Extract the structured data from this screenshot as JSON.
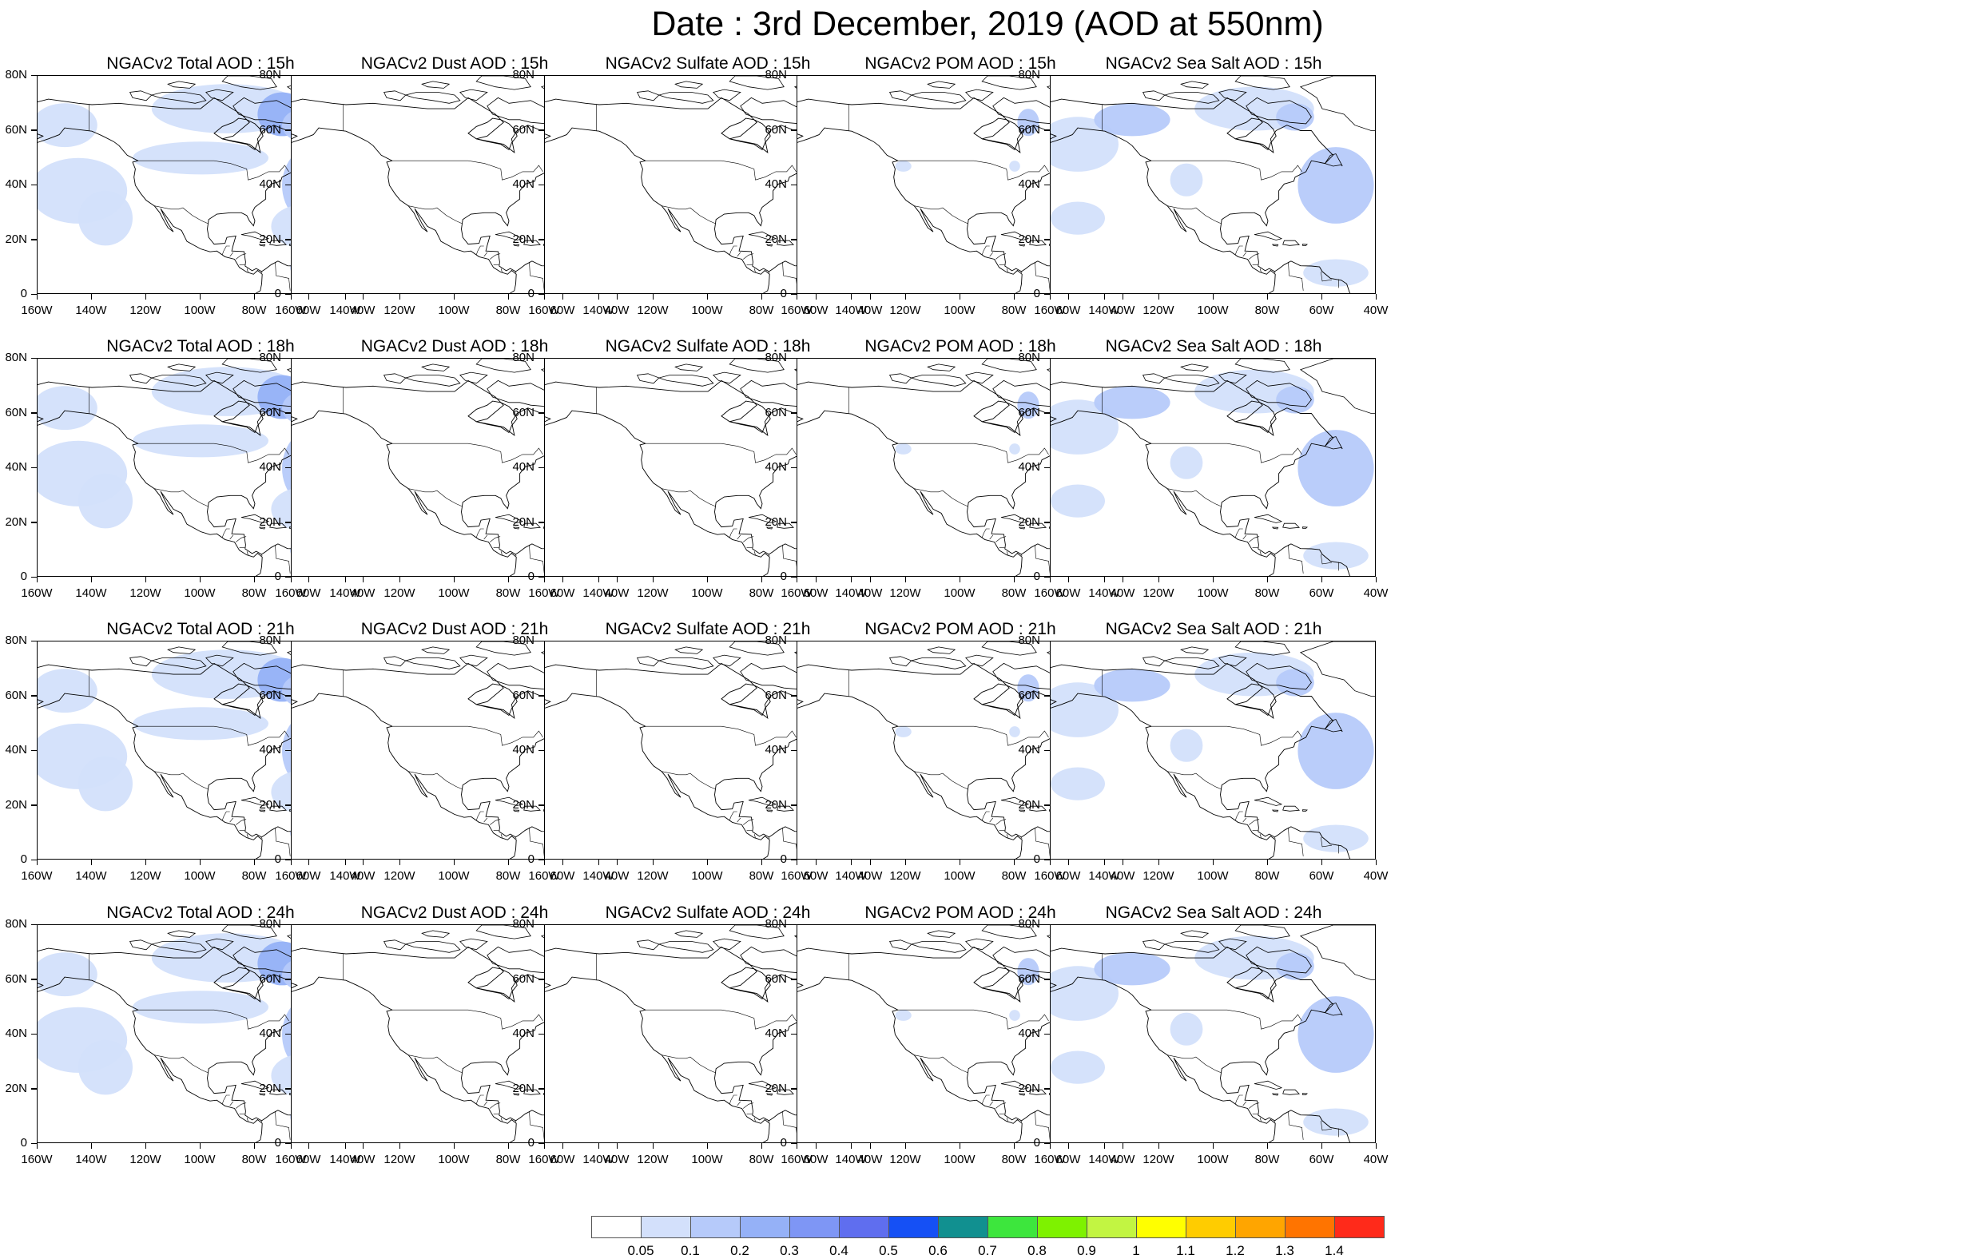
{
  "title": "Date : 3rd December, 2019 (AOD at 550nm)",
  "species": [
    {
      "key": "total",
      "label": "NGACv2 Total AOD"
    },
    {
      "key": "dust",
      "label": "NGACv2 Dust AOD"
    },
    {
      "key": "sulfate",
      "label": "NGACv2 Sulfate AOD"
    },
    {
      "key": "pom",
      "label": "NGACv2 POM AOD"
    },
    {
      "key": "seasalt",
      "label": "NGACv2 Sea Salt AOD"
    }
  ],
  "panels": [
    [
      "NGACv2 Total AOD : 15h",
      "NGACv2 Dust AOD : 15h",
      "NGACv2 Sulfate AOD : 15h",
      "NGACv2 POM AOD : 15h",
      "NGACv2 Sea Salt AOD : 15h"
    ],
    [
      "NGACv2 Total AOD : 18h",
      "NGACv2 Dust AOD : 18h",
      "NGACv2 Sulfate AOD : 18h",
      "NGACv2 POM AOD : 18h",
      "NGACv2 Sea Salt AOD : 18h"
    ],
    [
      "NGACv2 Total AOD : 21h",
      "NGACv2 Dust AOD : 21h",
      "NGACv2 Sulfate AOD : 21h",
      "NGACv2 POM AOD : 21h",
      "NGACv2 Sea Salt AOD : 21h"
    ],
    [
      "NGACv2 Total AOD : 24h",
      "NGACv2 Dust AOD : 24h",
      "NGACv2 Sulfate AOD : 24h",
      "NGACv2 POM AOD : 24h",
      "NGACv2 Sea Salt  AOD : 24h"
    ]
  ],
  "lat_ticks": [
    "80N",
    "60N",
    "40N",
    "20N",
    "0"
  ],
  "lon_ticks": [
    "160W",
    "140W",
    "120W",
    "100W",
    "80W",
    "60W",
    "40W"
  ],
  "colorbar": {
    "colors": [
      "#ffffff",
      "#d3e0fb",
      "#b6cafa",
      "#95b1f7",
      "#7e96f5",
      "#5f6eef",
      "#1550f5",
      "#119090",
      "#3de63d",
      "#7ef200",
      "#c2f542",
      "#ffff00",
      "#ffcc00",
      "#ffa500",
      "#ff7400",
      "#ff2a1a"
    ],
    "labels": [
      "0.05",
      "0.1",
      "0.2",
      "0.3",
      "0.4",
      "0.5",
      "0.6",
      "0.7",
      "0.8",
      "0.9",
      "1",
      "1.1",
      "1.2",
      "1.3",
      "1.4"
    ]
  }
}
